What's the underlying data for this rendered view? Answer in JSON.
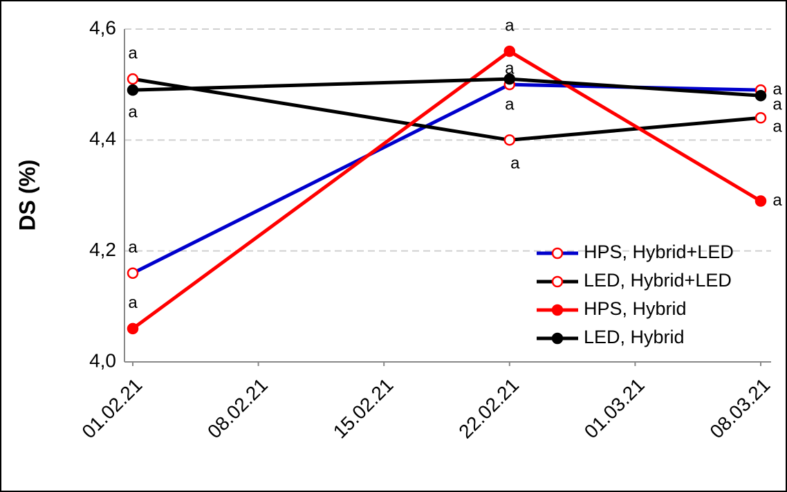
{
  "chart_data": {
    "type": "line",
    "y_label": "DS (%)",
    "x": [
      "01.02.21",
      "22.02.21",
      "08.03.21"
    ],
    "xlim": [
      "01.02.21",
      "08.03.21"
    ],
    "xticks": [
      "01.02.21",
      "08.02.21",
      "15.02.21",
      "22.02.21",
      "01.03.21",
      "08.03.21"
    ],
    "ylim": [
      4.0,
      4.6
    ],
    "yticks": [
      {
        "value": 4.0,
        "label": "4,0"
      },
      {
        "value": 4.2,
        "label": "4,2"
      },
      {
        "value": 4.4,
        "label": "4,4"
      },
      {
        "value": 4.6,
        "label": "4,6"
      }
    ],
    "grid": true,
    "legend": "lower right",
    "series": [
      {
        "name": "HPS, Hybrid+LED",
        "color": "#0000cc",
        "marker": "open",
        "marker_color": "#ff0000",
        "values": [
          4.16,
          4.5,
          4.49
        ],
        "point_labels": [
          "a",
          "a",
          "a"
        ]
      },
      {
        "name": "LED, Hybrid+LED",
        "color": "#000000",
        "marker": "open",
        "marker_color": "#ff0000",
        "values": [
          4.51,
          4.4,
          4.44
        ],
        "point_labels": [
          "a",
          "a",
          "a"
        ]
      },
      {
        "name": "HPS, Hybrid",
        "color": "#ff0000",
        "marker": "filled",
        "marker_color": "#ff0000",
        "values": [
          4.06,
          4.56,
          4.29
        ],
        "point_labels": [
          "a",
          "a",
          "a"
        ]
      },
      {
        "name": "LED, Hybrid",
        "color": "#000000",
        "marker": "filled",
        "marker_color": "#000000",
        "values": [
          4.49,
          4.51,
          4.48
        ],
        "point_labels": [
          "a",
          "a",
          "a"
        ]
      }
    ]
  }
}
